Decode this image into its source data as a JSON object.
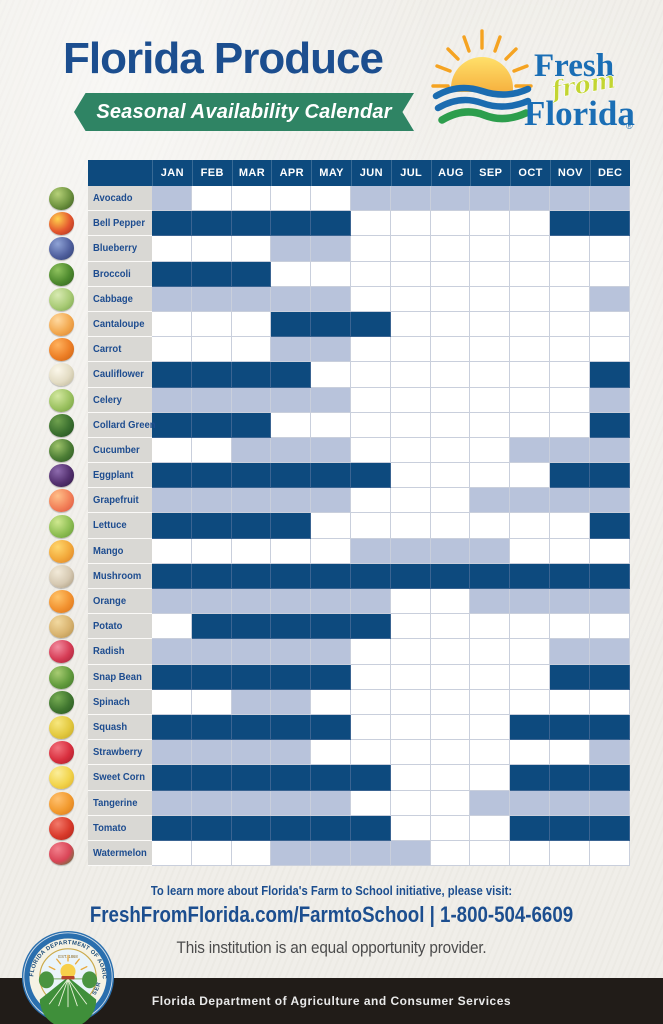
{
  "header": {
    "title": "Florida Produce",
    "subtitle": "Seasonal Availability Calendar"
  },
  "logo": {
    "fresh": "Fresh",
    "from": "from",
    "florida": "Florida",
    "registered": "®"
  },
  "chart_data": {
    "type": "heatmap",
    "title": "Florida Produce",
    "subtitle": "Seasonal Availability Calendar",
    "columns": [
      "JAN",
      "FEB",
      "MAR",
      "APR",
      "MAY",
      "JUN",
      "JUL",
      "AUG",
      "SEP",
      "OCT",
      "NOV",
      "DEC"
    ],
    "cell_states": {
      "0": "white / blank",
      "1": "light blue fill",
      "2": "dark blue fill"
    },
    "colors": {
      "dark_cell": "#0d4a7e",
      "light_cell": "#b8c3db",
      "header_bg": "#0d4a7e",
      "label_bg": "#d9d8d4",
      "label_text": "#1d4c8f"
    },
    "rows": [
      {
        "label": "Avocado",
        "icon": {
          "name": "avocado-icon",
          "colors": [
            "#b6d178",
            "#6f9440",
            "#33531b"
          ]
        },
        "values": [
          1,
          0,
          0,
          0,
          0,
          1,
          1,
          1,
          1,
          1,
          1,
          1
        ]
      },
      {
        "label": "Bell Pepper",
        "icon": {
          "name": "bell-pepper-icon",
          "colors": [
            "#ffd24d",
            "#e4572e",
            "#9e2b1f"
          ]
        },
        "values": [
          2,
          2,
          2,
          2,
          2,
          0,
          0,
          0,
          0,
          0,
          2,
          2
        ]
      },
      {
        "label": "Blueberry",
        "icon": {
          "name": "blueberry-icon",
          "colors": [
            "#8fa3d6",
            "#51619f",
            "#2b3a6b"
          ]
        },
        "values": [
          0,
          0,
          0,
          1,
          1,
          0,
          0,
          0,
          0,
          0,
          0,
          0
        ]
      },
      {
        "label": "Broccoli",
        "icon": {
          "name": "broccoli-icon",
          "colors": [
            "#8fc25e",
            "#4e8a2e",
            "#2e5c1c"
          ]
        },
        "values": [
          2,
          2,
          2,
          0,
          0,
          0,
          0,
          0,
          0,
          0,
          0,
          0
        ]
      },
      {
        "label": "Cabbage",
        "icon": {
          "name": "cabbage-icon",
          "colors": [
            "#d8eab2",
            "#a9cb76",
            "#74a148"
          ]
        },
        "values": [
          1,
          1,
          1,
          1,
          1,
          0,
          0,
          0,
          0,
          0,
          0,
          1
        ]
      },
      {
        "label": "Cantaloupe",
        "icon": {
          "name": "cantaloupe-icon",
          "colors": [
            "#ffd9a0",
            "#f2a950",
            "#d97f2b"
          ]
        },
        "values": [
          0,
          0,
          0,
          2,
          2,
          2,
          0,
          0,
          0,
          0,
          0,
          0
        ]
      },
      {
        "label": "Carrot",
        "icon": {
          "name": "carrot-icon",
          "colors": [
            "#ffb25e",
            "#ed7f26",
            "#c55e12"
          ]
        },
        "values": [
          0,
          0,
          0,
          1,
          1,
          0,
          0,
          0,
          0,
          0,
          0,
          0
        ]
      },
      {
        "label": "Cauliflower",
        "icon": {
          "name": "cauliflower-icon",
          "colors": [
            "#fbf7ea",
            "#e3dcc4",
            "#b9b192"
          ]
        },
        "values": [
          2,
          2,
          2,
          2,
          0,
          0,
          0,
          0,
          0,
          0,
          0,
          2
        ]
      },
      {
        "label": "Celery",
        "icon": {
          "name": "celery-icon",
          "colors": [
            "#d3e8a0",
            "#9cc261",
            "#6f9c3c"
          ]
        },
        "values": [
          1,
          1,
          1,
          1,
          1,
          0,
          0,
          0,
          0,
          0,
          0,
          1
        ]
      },
      {
        "label": "Collard Green",
        "icon": {
          "name": "collard-green-icon",
          "colors": [
            "#6fa14e",
            "#3b702f",
            "#1f4a1d"
          ]
        },
        "values": [
          2,
          2,
          2,
          0,
          0,
          0,
          0,
          0,
          0,
          0,
          0,
          2
        ]
      },
      {
        "label": "Cucumber",
        "icon": {
          "name": "cucumber-icon",
          "colors": [
            "#9ec36a",
            "#4c7d35",
            "#27521f"
          ]
        },
        "values": [
          0,
          0,
          1,
          1,
          1,
          0,
          0,
          0,
          0,
          1,
          1,
          1
        ]
      },
      {
        "label": "Eggplant",
        "icon": {
          "name": "eggplant-icon",
          "colors": [
            "#8e6bae",
            "#53306f",
            "#2e1742"
          ]
        },
        "values": [
          2,
          2,
          2,
          2,
          2,
          2,
          0,
          0,
          0,
          0,
          2,
          2
        ]
      },
      {
        "label": "Grapefruit",
        "icon": {
          "name": "grapefruit-icon",
          "colors": [
            "#ffc08a",
            "#f28058",
            "#d94f3d"
          ]
        },
        "values": [
          1,
          1,
          1,
          1,
          1,
          0,
          0,
          0,
          1,
          1,
          1,
          1
        ]
      },
      {
        "label": "Lettuce",
        "icon": {
          "name": "lettuce-icon",
          "colors": [
            "#cfe88f",
            "#8fbf54",
            "#5f9633"
          ]
        },
        "values": [
          2,
          2,
          2,
          2,
          0,
          0,
          0,
          0,
          0,
          0,
          0,
          2
        ]
      },
      {
        "label": "Mango",
        "icon": {
          "name": "mango-icon",
          "colors": [
            "#ffd76e",
            "#f2a93b",
            "#d97c24"
          ]
        },
        "values": [
          0,
          0,
          0,
          0,
          0,
          1,
          1,
          1,
          1,
          0,
          0,
          0
        ]
      },
      {
        "label": "Mushroom",
        "icon": {
          "name": "mushroom-icon",
          "colors": [
            "#f2ead9",
            "#d6c9b2",
            "#a39378"
          ]
        },
        "values": [
          2,
          2,
          2,
          2,
          2,
          2,
          2,
          2,
          2,
          2,
          2,
          2
        ]
      },
      {
        "label": "Orange",
        "icon": {
          "name": "orange-icon",
          "colors": [
            "#ffc46a",
            "#f29230",
            "#d66f17"
          ]
        },
        "values": [
          1,
          1,
          1,
          1,
          1,
          1,
          0,
          0,
          1,
          1,
          1,
          1
        ]
      },
      {
        "label": "Potato",
        "icon": {
          "name": "potato-icon",
          "colors": [
            "#f2d9a0",
            "#d9b470",
            "#b08c4a"
          ]
        },
        "values": [
          0,
          2,
          2,
          2,
          2,
          2,
          0,
          0,
          0,
          0,
          0,
          0
        ]
      },
      {
        "label": "Radish",
        "icon": {
          "name": "radish-icon",
          "colors": [
            "#f28da0",
            "#d63c55",
            "#9c1f35"
          ]
        },
        "values": [
          1,
          1,
          1,
          1,
          1,
          0,
          0,
          0,
          0,
          0,
          1,
          1
        ]
      },
      {
        "label": "Snap Bean",
        "icon": {
          "name": "snap-bean-icon",
          "colors": [
            "#a8cc72",
            "#639c3d",
            "#3d7026"
          ]
        },
        "values": [
          2,
          2,
          2,
          2,
          2,
          0,
          0,
          0,
          0,
          0,
          2,
          2
        ]
      },
      {
        "label": "Spinach",
        "icon": {
          "name": "spinach-icon",
          "colors": [
            "#77ad53",
            "#40762f",
            "#24511f"
          ]
        },
        "values": [
          0,
          0,
          1,
          1,
          0,
          0,
          0,
          0,
          0,
          0,
          0,
          0
        ]
      },
      {
        "label": "Squash",
        "icon": {
          "name": "squash-icon",
          "colors": [
            "#f7e77e",
            "#e3c93f",
            "#c0a424"
          ]
        },
        "values": [
          2,
          2,
          2,
          2,
          2,
          0,
          0,
          0,
          0,
          2,
          2,
          2
        ]
      },
      {
        "label": "Strawberry",
        "icon": {
          "name": "strawberry-icon",
          "colors": [
            "#f2737d",
            "#d92f3e",
            "#9e1b28"
          ]
        },
        "values": [
          1,
          1,
          1,
          1,
          0,
          0,
          0,
          0,
          0,
          0,
          0,
          1
        ]
      },
      {
        "label": "Sweet Corn",
        "icon": {
          "name": "sweet-corn-icon",
          "colors": [
            "#fbee9a",
            "#f2d44c",
            "#d9ab26"
          ]
        },
        "values": [
          2,
          2,
          2,
          2,
          2,
          2,
          0,
          0,
          0,
          2,
          2,
          2
        ]
      },
      {
        "label": "Tangerine",
        "icon": {
          "name": "tangerine-icon",
          "colors": [
            "#ffc170",
            "#f29a2e",
            "#d3761a"
          ]
        },
        "values": [
          1,
          1,
          1,
          1,
          1,
          0,
          0,
          0,
          1,
          1,
          1,
          1
        ]
      },
      {
        "label": "Tomato",
        "icon": {
          "name": "tomato-icon",
          "colors": [
            "#f2796a",
            "#d93a2b",
            "#a62318"
          ]
        },
        "values": [
          2,
          2,
          2,
          2,
          2,
          2,
          0,
          0,
          0,
          2,
          2,
          2
        ]
      },
      {
        "label": "Watermelon",
        "icon": {
          "name": "watermelon-icon",
          "colors": [
            "#f2808c",
            "#d94456",
            "#3e8a3c"
          ]
        },
        "values": [
          0,
          0,
          0,
          1,
          1,
          1,
          1,
          0,
          0,
          0,
          0,
          0
        ]
      }
    ]
  },
  "footer": {
    "line1": "To learn more about Florida's Farm to School initiative, please visit:",
    "line2": "FreshFromFlorida.com/FarmtoSchool | 1-800-504-6609",
    "line3": "This institution is an equal opportunity provider.",
    "bottom_bar": "Florida Department of Agriculture and Consumer Services"
  },
  "seal": {
    "text_top": "FLORIDA DEPARTMENT OF AGRICULTURE",
    "text_bottom": "AND CONSUMER SERVICES",
    "est": "EST. 1868"
  }
}
